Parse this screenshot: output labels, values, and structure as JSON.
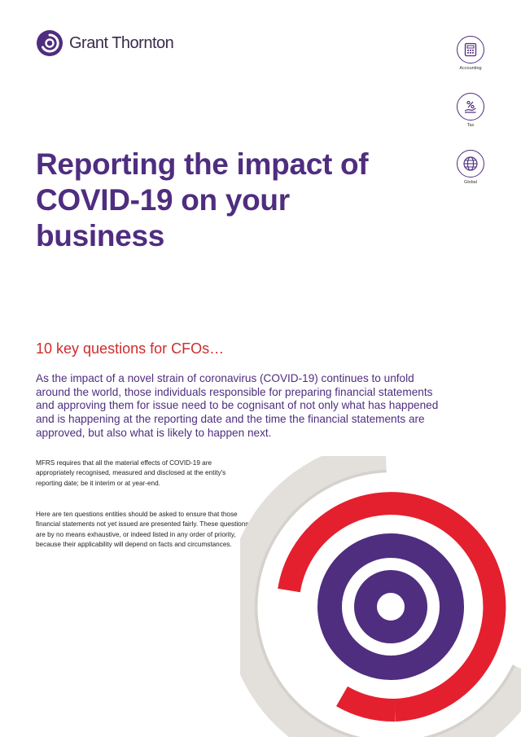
{
  "brand": {
    "name": "Grant Thornton"
  },
  "side_icons": [
    {
      "label": "Accounting",
      "icon": "calculator-icon"
    },
    {
      "label": "Tax",
      "icon": "percent-hand-icon"
    },
    {
      "label": "Global",
      "icon": "globe-icon"
    }
  ],
  "title": "Reporting the impact of COVID-19 on your business",
  "subtitle": "10 key questions for CFOs…",
  "lead": "As the impact of a novel strain of coronavirus (COVID-19) continues to unfold around the world, those individuals responsible for preparing financial statements and approving them for issue need to be cognisant of not only what has happened and is happening at the reporting date and the time the financial statements are approved, but also what is likely to happen next.",
  "body": {
    "p1": "MFRS requires that all the material effects of COVID-19 are appropriately recognised, measured and disclosed at the entity's reporting date; be it interim or at year-end.",
    "p2": "Here are ten questions entities should be asked to ensure that those financial statements not yet issued are presented fairly. These questions are by no means exhaustive, or indeed listed in any order of priority, because their applicability will depend on facts and circumstances."
  },
  "colors": {
    "purple": "#4f2d7f",
    "red": "#e4202e",
    "grey": "#dedad6"
  }
}
